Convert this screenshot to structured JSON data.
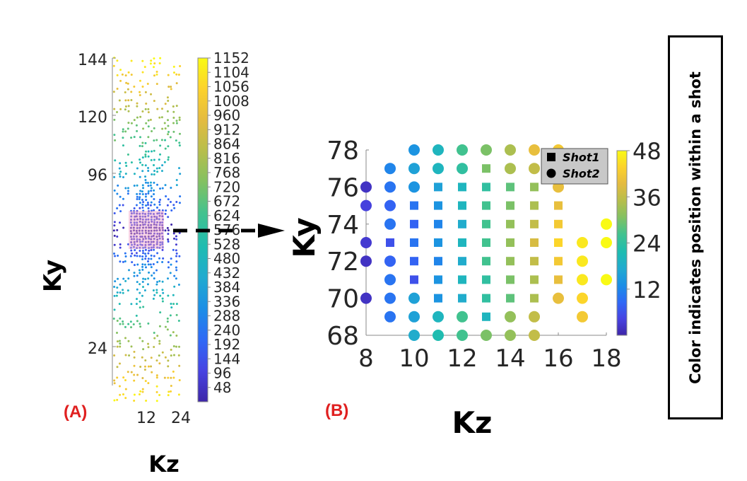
{
  "colormap": [
    "#3e26a8",
    "#4743e2",
    "#2f69f6",
    "#1b8ee6",
    "#21aad0",
    "#1ebcb1",
    "#43c28e",
    "#83c161",
    "#b7be4b",
    "#e4bb40",
    "#fcd22c",
    "#f9fa14"
  ],
  "chart_data": [
    {
      "panel_label": "(A)",
      "type": "scatter",
      "title": "",
      "xlabel": "Kz",
      "ylabel": "Ky",
      "xlim": [
        0,
        24
      ],
      "ylim": [
        0,
        144
      ],
      "xticks": [
        "12",
        "24"
      ],
      "yticks": [
        "24",
        "96",
        "120",
        "144"
      ],
      "colorbar": {
        "min": 0,
        "max": 1152,
        "ticks": [
          "48",
          "96",
          "144",
          "192",
          "240",
          "288",
          "336",
          "384",
          "432",
          "480",
          "528",
          "576",
          "624",
          "672",
          "720",
          "768",
          "816",
          "864",
          "912",
          "960",
          "1008",
          "1056",
          "1104",
          "1152"
        ]
      }
    },
    {
      "panel_label": "(B)",
      "type": "scatter",
      "title": "",
      "xlabel": "Kz",
      "ylabel": "Ky",
      "xlim": [
        8,
        18
      ],
      "ylim": [
        68,
        78
      ],
      "xticks": [
        "8",
        "10",
        "12",
        "14",
        "16",
        "18"
      ],
      "yticks": [
        "68",
        "70",
        "72",
        "74",
        "76",
        "78"
      ],
      "colorbar": {
        "min": 0,
        "max": 48,
        "ticks": [
          "12",
          "24",
          "36",
          "48"
        ]
      },
      "legend": [
        "Shot1",
        "Shot2"
      ],
      "legend_position": "top-right",
      "series": [
        {
          "name": "Shot1",
          "marker": "square",
          "points": [
            [
              13,
              77,
              30
            ],
            [
              11,
              76,
              16
            ],
            [
              12,
              76,
              20
            ],
            [
              13,
              76,
              24
            ],
            [
              14,
              76,
              28
            ],
            [
              15,
              76,
              32
            ],
            [
              10,
              75,
              10
            ],
            [
              11,
              75,
              14
            ],
            [
              12,
              75,
              20
            ],
            [
              13,
              75,
              26
            ],
            [
              14,
              75,
              30
            ],
            [
              15,
              75,
              34
            ],
            [
              16,
              75,
              40
            ],
            [
              10,
              74,
              8
            ],
            [
              11,
              74,
              12
            ],
            [
              12,
              74,
              18
            ],
            [
              13,
              74,
              26
            ],
            [
              14,
              74,
              32
            ],
            [
              15,
              74,
              36
            ],
            [
              16,
              74,
              42
            ],
            [
              9,
              73,
              6
            ],
            [
              10,
              73,
              10
            ],
            [
              11,
              73,
              14
            ],
            [
              12,
              73,
              20
            ],
            [
              13,
              73,
              26
            ],
            [
              14,
              73,
              32
            ],
            [
              15,
              73,
              38
            ],
            [
              16,
              73,
              44
            ],
            [
              10,
              72,
              8
            ],
            [
              11,
              72,
              12
            ],
            [
              12,
              72,
              18
            ],
            [
              13,
              72,
              26
            ],
            [
              14,
              72,
              32
            ],
            [
              15,
              72,
              36
            ],
            [
              16,
              72,
              42
            ],
            [
              10,
              71,
              6
            ],
            [
              11,
              71,
              14
            ],
            [
              12,
              71,
              20
            ],
            [
              13,
              71,
              24
            ],
            [
              14,
              71,
              30
            ],
            [
              15,
              71,
              34
            ],
            [
              16,
              71,
              40
            ],
            [
              11,
              70,
              14
            ],
            [
              12,
              70,
              18
            ],
            [
              13,
              70,
              24
            ],
            [
              14,
              70,
              28
            ],
            [
              15,
              70,
              34
            ],
            [
              13,
              69,
              20
            ]
          ]
        },
        {
          "name": "Shot2",
          "marker": "circle",
          "points": [
            [
              10,
              78,
              14
            ],
            [
              11,
              78,
              20
            ],
            [
              12,
              78,
              26
            ],
            [
              13,
              78,
              30
            ],
            [
              14,
              78,
              34
            ],
            [
              15,
              78,
              40
            ],
            [
              16,
              78,
              42
            ],
            [
              9,
              77,
              12
            ],
            [
              10,
              77,
              16
            ],
            [
              11,
              77,
              20
            ],
            [
              12,
              77,
              24
            ],
            [
              14,
              77,
              34
            ],
            [
              15,
              77,
              36
            ],
            [
              8,
              76,
              2
            ],
            [
              9,
              76,
              10
            ],
            [
              10,
              76,
              14
            ],
            [
              16,
              76,
              40
            ],
            [
              8,
              75,
              4
            ],
            [
              9,
              75,
              8
            ],
            [
              9,
              74,
              10
            ],
            [
              18,
              74,
              48
            ],
            [
              8,
              73,
              3
            ],
            [
              17,
              73,
              46
            ],
            [
              18,
              73,
              48
            ],
            [
              8,
              72,
              2
            ],
            [
              9,
              72,
              8
            ],
            [
              17,
              72,
              46
            ],
            [
              9,
              71,
              10
            ],
            [
              17,
              71,
              46
            ],
            [
              18,
              71,
              48
            ],
            [
              8,
              70,
              2
            ],
            [
              9,
              70,
              10
            ],
            [
              10,
              70,
              16
            ],
            [
              16,
              70,
              40
            ],
            [
              17,
              70,
              44
            ],
            [
              9,
              69,
              10
            ],
            [
              10,
              69,
              16
            ],
            [
              11,
              69,
              20
            ],
            [
              12,
              69,
              26
            ],
            [
              14,
              69,
              32
            ],
            [
              15,
              69,
              36
            ],
            [
              17,
              69,
              42
            ],
            [
              10,
              68,
              18
            ],
            [
              11,
              68,
              22
            ],
            [
              12,
              68,
              26
            ],
            [
              13,
              68,
              30
            ],
            [
              14,
              68,
              32
            ],
            [
              15,
              68,
              36
            ]
          ]
        }
      ]
    }
  ],
  "side_note": "Color indicates position within a shot"
}
